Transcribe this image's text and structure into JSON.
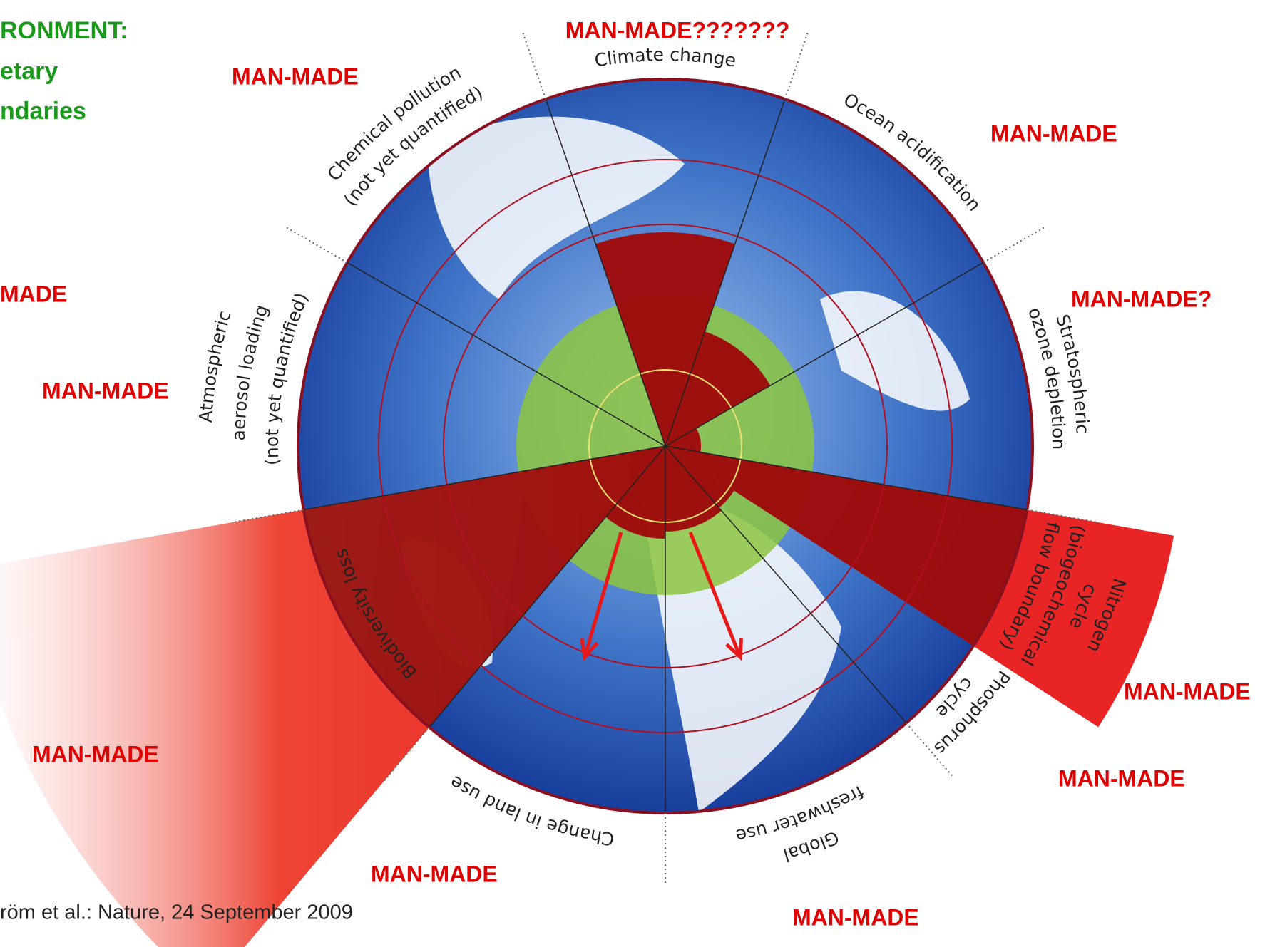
{
  "header": {
    "lines": [
      "RONMENT:",
      "etary",
      "ndaries"
    ]
  },
  "segments": [
    {
      "lines": [
        "Climate change"
      ]
    },
    {
      "lines": [
        "Ocean acidification"
      ]
    },
    {
      "lines": [
        "Stratospheric",
        "ozone depletion"
      ]
    },
    {
      "lines": [
        "Nitrogen",
        "cycle",
        "(biogeochemical",
        "flow boundary)"
      ]
    },
    {
      "lines": [
        "Phosphorus",
        "cycle"
      ]
    },
    {
      "lines": [
        "Global",
        "freshwater use"
      ]
    },
    {
      "lines": [
        "Change in land use"
      ]
    },
    {
      "lines": [
        "Biodiversity loss"
      ]
    },
    {
      "lines": [
        "Atmospheric",
        "aerosol loading",
        "(not yet quantified)"
      ]
    },
    {
      "lines": [
        "Chemical pollution",
        "(not yet quantified)"
      ]
    }
  ],
  "annotations": [
    "MAN-MADE???????",
    "MAN-MADE",
    "MAN-MADE",
    "MADE",
    "MAN-MADE?",
    "MAN-MADE",
    "MAN-MADE",
    "MAN-MADE",
    "MAN-MADE",
    "MAN-MADE",
    "MAN-MADE"
  ],
  "citation": "röm et al.: Nature, 24 September 2009"
}
